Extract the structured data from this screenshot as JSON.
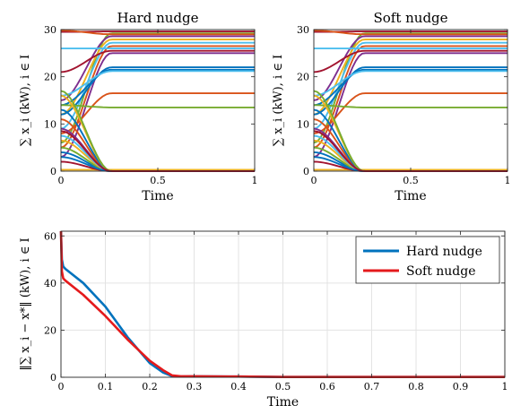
{
  "chart_data": [
    {
      "type": "line",
      "title": "Hard nudge",
      "xlabel": "Time",
      "ylabel": "∑ x_i (kW), i ∈ I",
      "xlim": [
        0,
        1
      ],
      "ylim": [
        0,
        30
      ],
      "xticks": [
        "0",
        "0.5",
        "1"
      ],
      "yticks": [
        "0",
        "10",
        "20",
        "30"
      ],
      "grid": false,
      "series": [
        {
          "color": "#A2142F",
          "y0": 29.5,
          "y1": 29.6
        },
        {
          "color": "#77AC30",
          "y0": 6,
          "y1": 29.2
        },
        {
          "color": "#7E2F8E",
          "y0": 15,
          "y1": 28.6
        },
        {
          "color": "#EDB120",
          "y0": 12,
          "y1": 27.9
        },
        {
          "color": "#4DBEEE",
          "y0": 9,
          "y1": 27.2
        },
        {
          "color": "#D95319",
          "y0": 5,
          "y1": 26.5
        },
        {
          "color": "#A2142F",
          "y0": 21,
          "y1": 25.5
        },
        {
          "color": "#7E2F8E",
          "y0": 3,
          "y1": 25
        },
        {
          "color": "#0072BD",
          "y0": 12,
          "y1": 22
        },
        {
          "color": "#0072BD",
          "y0": 14,
          "y1": 21.5
        },
        {
          "color": "#4DBEEE",
          "y0": 16,
          "y1": 21.2
        },
        {
          "color": "#D95319",
          "y0": 29.8,
          "y1": 29
        },
        {
          "color": "#4DBEEE",
          "y0": 26,
          "y1": 26
        },
        {
          "color": "#D95319",
          "y0": 8,
          "y1": 16.5
        },
        {
          "color": "#77AC30",
          "y0": 14,
          "y1": 13.5
        },
        {
          "color": "#EDB120",
          "y0": 0.3,
          "y1": 0.3
        },
        {
          "color": "#A2142F",
          "y0": 2,
          "y1": 0
        },
        {
          "color": "#0072BD",
          "y0": 4,
          "y1": 0
        },
        {
          "color": "#77AC30",
          "y0": 5,
          "y1": 0
        },
        {
          "color": "#EDB120",
          "y0": 6.5,
          "y1": 0
        },
        {
          "color": "#4DBEEE",
          "y0": 7.5,
          "y1": 0
        },
        {
          "color": "#7E2F8E",
          "y0": 9,
          "y1": 0
        },
        {
          "color": "#D95319",
          "y0": 11,
          "y1": 0
        },
        {
          "color": "#0072BD",
          "y0": 13,
          "y1": 0
        },
        {
          "color": "#EDB120",
          "y0": 16,
          "y1": 0
        },
        {
          "color": "#77AC30",
          "y0": 17,
          "y1": 0
        },
        {
          "color": "#0072BD",
          "y0": 3,
          "y1": 0
        },
        {
          "color": "#A2142F",
          "y0": 8.5,
          "y1": 0
        }
      ]
    },
    {
      "type": "line",
      "title": "Soft nudge",
      "xlabel": "Time",
      "ylabel": "∑ x_i (kW), i ∈ I",
      "xlim": [
        0,
        1
      ],
      "ylim": [
        0,
        30
      ],
      "xticks": [
        "0",
        "0.5",
        "1"
      ],
      "yticks": [
        "0",
        "10",
        "20",
        "30"
      ],
      "grid": false,
      "series": [
        {
          "color": "#A2142F",
          "y0": 29.5,
          "y1": 29.6
        },
        {
          "color": "#77AC30",
          "y0": 6,
          "y1": 29.2
        },
        {
          "color": "#7E2F8E",
          "y0": 15,
          "y1": 28.6
        },
        {
          "color": "#EDB120",
          "y0": 12,
          "y1": 27.9
        },
        {
          "color": "#4DBEEE",
          "y0": 9,
          "y1": 27.2
        },
        {
          "color": "#D95319",
          "y0": 5,
          "y1": 26.5
        },
        {
          "color": "#A2142F",
          "y0": 21,
          "y1": 25.5
        },
        {
          "color": "#7E2F8E",
          "y0": 3,
          "y1": 25
        },
        {
          "color": "#0072BD",
          "y0": 12,
          "y1": 22
        },
        {
          "color": "#0072BD",
          "y0": 14,
          "y1": 21.5
        },
        {
          "color": "#4DBEEE",
          "y0": 16,
          "y1": 21.2
        },
        {
          "color": "#D95319",
          "y0": 29.8,
          "y1": 29
        },
        {
          "color": "#4DBEEE",
          "y0": 26,
          "y1": 26
        },
        {
          "color": "#D95319",
          "y0": 8,
          "y1": 16.5
        },
        {
          "color": "#77AC30",
          "y0": 14,
          "y1": 13.5
        },
        {
          "color": "#EDB120",
          "y0": 0.3,
          "y1": 0.3
        },
        {
          "color": "#A2142F",
          "y0": 2,
          "y1": 0
        },
        {
          "color": "#0072BD",
          "y0": 4,
          "y1": 0
        },
        {
          "color": "#77AC30",
          "y0": 5,
          "y1": 0
        },
        {
          "color": "#EDB120",
          "y0": 6.5,
          "y1": 0
        },
        {
          "color": "#4DBEEE",
          "y0": 7.5,
          "y1": 0
        },
        {
          "color": "#7E2F8E",
          "y0": 9,
          "y1": 0
        },
        {
          "color": "#D95319",
          "y0": 11,
          "y1": 0
        },
        {
          "color": "#0072BD",
          "y0": 13,
          "y1": 0
        },
        {
          "color": "#EDB120",
          "y0": 16,
          "y1": 0
        },
        {
          "color": "#77AC30",
          "y0": 17,
          "y1": 0
        },
        {
          "color": "#0072BD",
          "y0": 3,
          "y1": 0
        },
        {
          "color": "#A2142F",
          "y0": 8.5,
          "y1": 0
        }
      ]
    },
    {
      "type": "line",
      "title": "",
      "xlabel": "Time",
      "ylabel": "‖∑ x_i − x*‖ (kW), i ∈ I",
      "xlim": [
        0,
        1
      ],
      "ylim": [
        0,
        62
      ],
      "xticks": [
        "0",
        "0.1",
        "0.2",
        "0.3",
        "0.4",
        "0.5",
        "0.6",
        "0.7",
        "0.8",
        "0.9",
        "1"
      ],
      "yticks": [
        "0",
        "20",
        "40",
        "60"
      ],
      "grid": true,
      "legend_position": "top-right",
      "series": [
        {
          "name": "Hard nudge",
          "color": "#0072BD",
          "x": [
            0,
            0.002,
            0.005,
            0.01,
            0.05,
            0.1,
            0.15,
            0.2,
            0.23,
            0.25,
            0.27,
            0.3,
            0.4,
            0.5,
            0.6,
            0.7,
            0.8,
            0.9,
            1.0
          ],
          "y": [
            62,
            50,
            47,
            46,
            40,
            30,
            17,
            6,
            2,
            0.5,
            0.3,
            0.4,
            0.3,
            0.1,
            0.1,
            0.1,
            0.1,
            0.1,
            0.1
          ]
        },
        {
          "name": "Soft nudge",
          "color": "#E41A1C",
          "x": [
            0,
            0.002,
            0.005,
            0.01,
            0.05,
            0.1,
            0.15,
            0.2,
            0.23,
            0.25,
            0.27,
            0.3,
            0.4,
            0.5,
            0.6,
            0.7,
            0.8,
            0.9,
            1.0
          ],
          "y": [
            62,
            45,
            42,
            41,
            35,
            26,
            16,
            7,
            3,
            0.8,
            0.4,
            0.4,
            0.3,
            0.1,
            0.1,
            0.1,
            0.1,
            0.1,
            0.1
          ]
        }
      ]
    }
  ]
}
